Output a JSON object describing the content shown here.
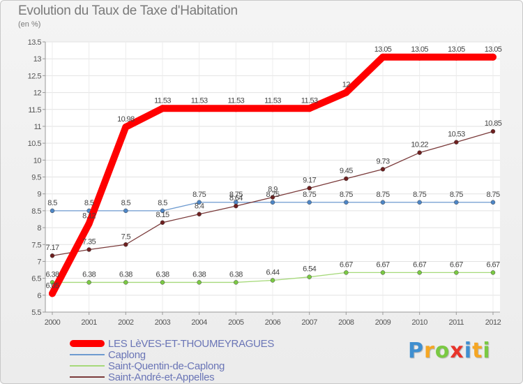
{
  "chart_data": {
    "type": "line",
    "title": "Evolution du Taux de Taxe d'Habitation",
    "subtitle": "(en %)",
    "xlabel": "",
    "ylabel": "",
    "ylim": [
      5.5,
      13.5
    ],
    "yticks": [
      "5.5",
      "6",
      "6.5",
      "7",
      "7.5",
      "8",
      "8.5",
      "9",
      "9.5",
      "10",
      "10.5",
      "11",
      "11.5",
      "12",
      "12.5",
      "13",
      "13.5"
    ],
    "x": [
      "2000",
      "2001",
      "2002",
      "2003",
      "2004",
      "2005",
      "2006",
      "2007",
      "2008",
      "2009",
      "2010",
      "2011",
      "2012"
    ],
    "series": [
      {
        "name": "LES LèVES-ET-THOUMEYRAGUES",
        "color": "#ff0000",
        "marker": "#ff0000",
        "values": [
          6.05,
          8.12,
          10.98,
          11.53,
          11.53,
          11.53,
          11.53,
          11.53,
          12,
          13.05,
          13.05,
          13.05,
          13.05
        ],
        "labels": [
          "6.05",
          "8.12",
          "10.98",
          "11.53",
          "11.53",
          "11.53",
          "11.53",
          "11.53",
          "12",
          "13.05",
          "13.05",
          "13.05",
          "13.05"
        ]
      },
      {
        "name": "Caplong",
        "color": "#6e9bd0",
        "marker": "#4e86c6",
        "values": [
          8.5,
          8.5,
          8.5,
          8.5,
          8.75,
          8.75,
          8.75,
          8.75,
          8.75,
          8.75,
          8.75,
          8.75,
          8.75
        ],
        "labels": [
          "8.5",
          "8.5",
          "8.5",
          "8.5",
          "8.75",
          "8.75",
          "8.75",
          "8.75",
          "8.75",
          "8.75",
          "8.75",
          "8.75",
          "8.75"
        ]
      },
      {
        "name": "Saint-Quentin-de-Caplong",
        "color": "#a6d97a",
        "marker": "#7ac943",
        "values": [
          6.38,
          6.38,
          6.38,
          6.38,
          6.38,
          6.38,
          6.44,
          6.54,
          6.67,
          6.67,
          6.67,
          6.67,
          6.67
        ],
        "labels": [
          "6.38",
          "6.38",
          "6.38",
          "6.38",
          "6.38",
          "6.38",
          "6.44",
          "6.54",
          "6.67",
          "6.67",
          "6.67",
          "6.67",
          "6.67"
        ]
      },
      {
        "name": "Saint-André-et-Appelles",
        "color": "#7a3a3a",
        "marker": "#6e1f1f",
        "values": [
          7.17,
          7.35,
          7.5,
          8.15,
          8.4,
          8.64,
          8.9,
          9.17,
          9.45,
          9.73,
          10.22,
          10.53,
          10.85
        ],
        "labels": [
          "7.17",
          "7.35",
          "7.5",
          "8.15",
          "8.4",
          "8.64",
          "8.9",
          "9.17",
          "9.45",
          "9.73",
          "10.22",
          "10.53",
          "10.85"
        ]
      }
    ]
  },
  "logo": {
    "letters": [
      "P",
      "r",
      "o",
      "x",
      "i",
      "t",
      "i"
    ],
    "colors": [
      "#3f8fd0",
      "#f5a623",
      "#7ac943",
      "#e8342a",
      "#3f8fd0",
      "#f5a623",
      "#7ac943"
    ]
  }
}
